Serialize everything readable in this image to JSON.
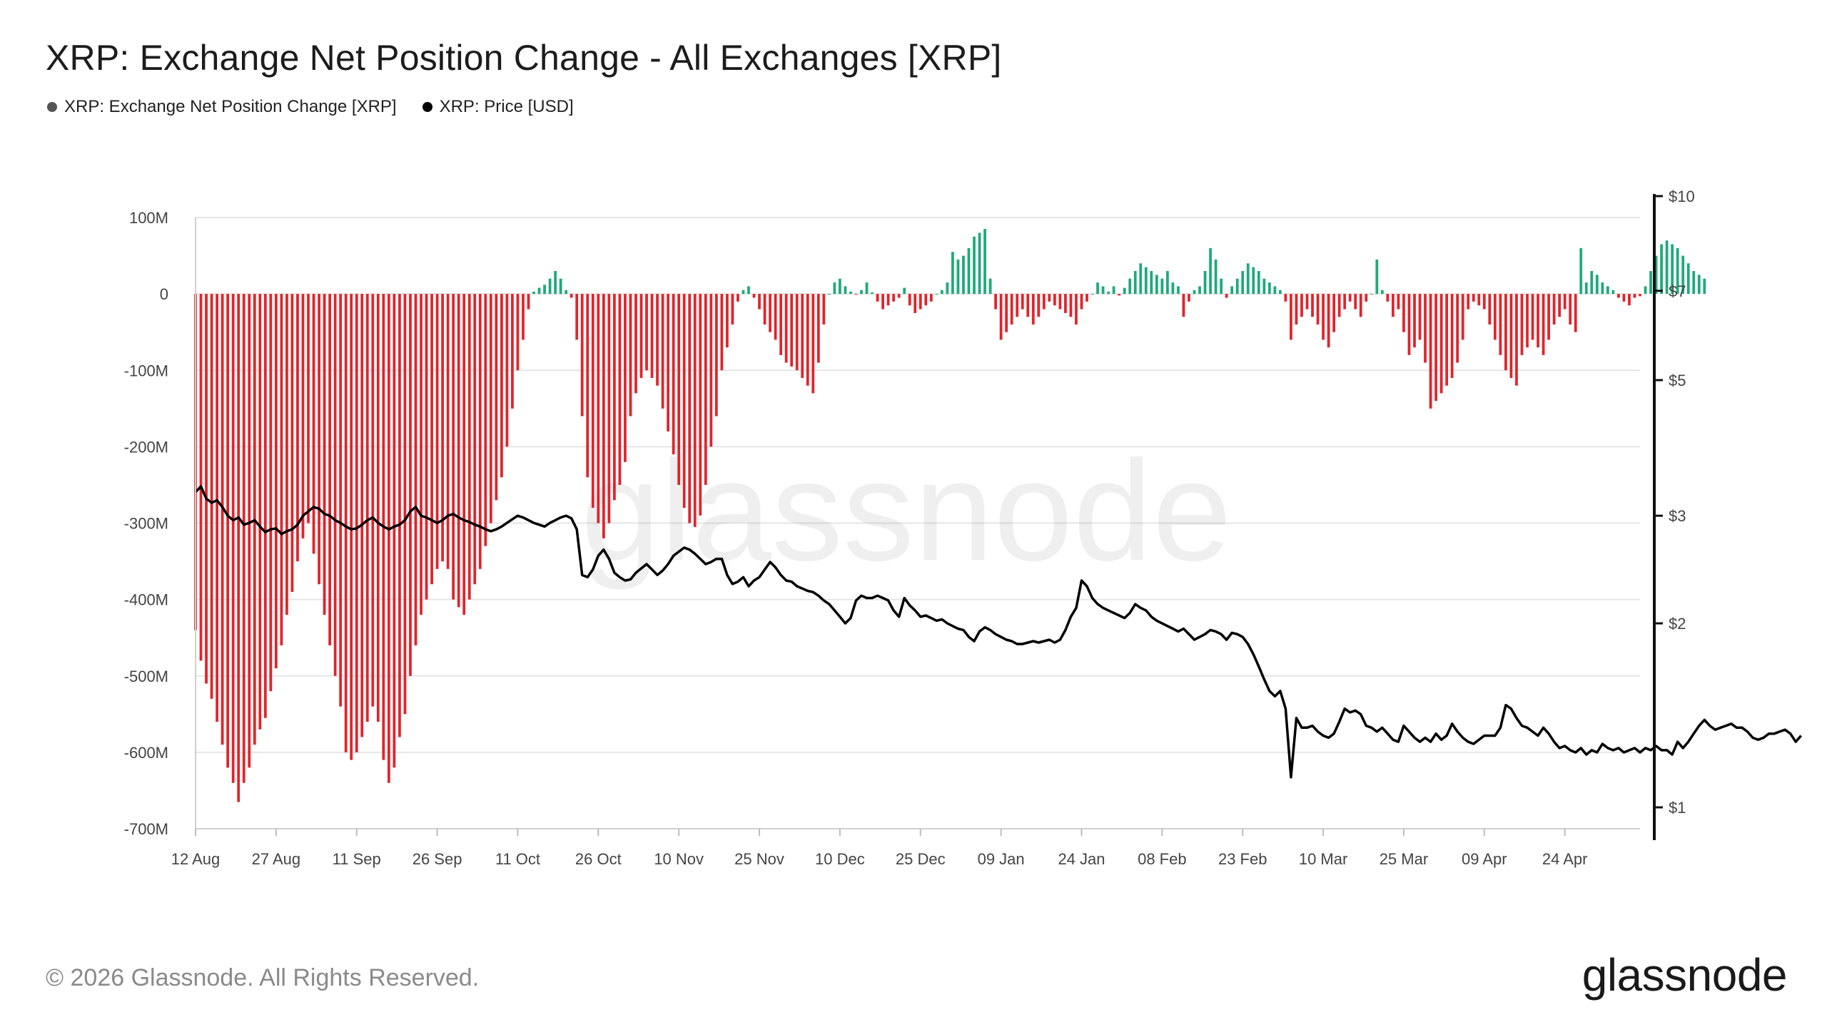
{
  "title": "XRP: Exchange Net Position Change - All Exchanges [XRP]",
  "legend": [
    {
      "label": "XRP: Exchange Net Position Change [XRP]",
      "color": "#555555"
    },
    {
      "label": "XRP: Price [USD]",
      "color": "#000000"
    }
  ],
  "footer": "© 2026 Glassnode. All Rights Reserved.",
  "brand": "glassnode",
  "watermark": "glassnode",
  "colors": {
    "positive": "#1fa97a",
    "negative": "#e0242b",
    "price": "#000000",
    "grid": "#e6e6e6"
  },
  "chart_data": {
    "type": "bar",
    "title": "XRP: Exchange Net Position Change - All Exchanges [XRP]",
    "grid": true,
    "legend_placement": "top-left",
    "x_axis": {
      "start": "2025-08-12",
      "end": "2026-05-08",
      "tick_labels": [
        "12 Aug",
        "27 Aug",
        "11 Sep",
        "26 Sep",
        "11 Oct",
        "26 Oct",
        "10 Nov",
        "25 Nov",
        "10 Dec",
        "25 Dec",
        "09 Jan",
        "24 Jan",
        "08 Feb",
        "23 Feb",
        "10 Mar",
        "25 Mar",
        "09 Apr",
        "24 Apr"
      ]
    },
    "y_left": {
      "label": "",
      "unit": "XRP",
      "range": [
        -700,
        100
      ],
      "tick_labels": [
        "100M",
        "0",
        "-100M",
        "-200M",
        "-300M",
        "-400M",
        "-500M",
        "-600M",
        "-700M"
      ]
    },
    "y_right": {
      "label": "",
      "scale": "log",
      "range": [
        1,
        10
      ],
      "tick_values": [
        10,
        7,
        5,
        3,
        2,
        1
      ],
      "tick_labels": [
        "$10",
        "$7",
        "$5",
        "$3",
        "$2",
        "$1"
      ]
    },
    "series": [
      {
        "name": "XRP: Exchange Net Position Change [XRP]",
        "unit": "M XRP",
        "step_days": 1,
        "values": [
          -440,
          -480,
          -510,
          -530,
          -560,
          -590,
          -620,
          -640,
          -665,
          -640,
          -620,
          -590,
          -570,
          -555,
          -520,
          -490,
          -460,
          -420,
          -390,
          -350,
          -320,
          -300,
          -340,
          -380,
          -420,
          -460,
          -500,
          -540,
          -600,
          -610,
          -600,
          -580,
          -560,
          -540,
          -560,
          -610,
          -640,
          -620,
          -580,
          -550,
          -500,
          -460,
          -420,
          -400,
          -380,
          -360,
          -350,
          -360,
          -400,
          -410,
          -420,
          -400,
          -380,
          -360,
          -330,
          -300,
          -270,
          -240,
          -200,
          -150,
          -100,
          -60,
          -20,
          3,
          8,
          12,
          20,
          30,
          20,
          5,
          -5,
          -60,
          -160,
          -240,
          -280,
          -300,
          -320,
          -300,
          -270,
          -250,
          -220,
          -160,
          -130,
          -110,
          -100,
          -110,
          -120,
          -150,
          -180,
          -210,
          -250,
          -280,
          -300,
          -305,
          -290,
          -250,
          -200,
          -160,
          -100,
          -70,
          -40,
          -10,
          5,
          10,
          -5,
          -20,
          -40,
          -50,
          -60,
          -80,
          -90,
          -95,
          -100,
          -110,
          -120,
          -130,
          -90,
          -40,
          0,
          15,
          20,
          10,
          3,
          -1,
          5,
          15,
          2,
          -10,
          -20,
          -15,
          -10,
          -5,
          8,
          -15,
          -25,
          -20,
          -15,
          -10,
          0,
          5,
          15,
          55,
          45,
          50,
          60,
          75,
          80,
          85,
          20,
          -20,
          -60,
          -50,
          -40,
          -30,
          -20,
          -30,
          -40,
          -30,
          -20,
          -10,
          -15,
          -20,
          -25,
          -30,
          -40,
          -20,
          -10,
          0,
          15,
          10,
          3,
          10,
          -2,
          8,
          20,
          30,
          40,
          35,
          30,
          25,
          20,
          30,
          15,
          10,
          -30,
          -10,
          5,
          10,
          30,
          60,
          45,
          20,
          -5,
          10,
          20,
          30,
          40,
          35,
          30,
          20,
          15,
          10,
          5,
          -10,
          -60,
          -40,
          -30,
          -20,
          -30,
          -40,
          -60,
          -70,
          -50,
          -30,
          -20,
          -10,
          -20,
          -30,
          -10,
          0,
          45,
          5,
          -10,
          -30,
          -20,
          -50,
          -80,
          -70,
          -60,
          -90,
          -150,
          -140,
          -130,
          -120,
          -110,
          -90,
          -60,
          -20,
          -10,
          -15,
          -20,
          -40,
          -60,
          -80,
          -100,
          -110,
          -120,
          -80,
          -70,
          -60,
          -70,
          -80,
          -60,
          -40,
          -30,
          -20,
          -40,
          -50,
          60,
          15,
          30,
          25,
          15,
          10,
          5,
          -5,
          -10,
          -15,
          -5,
          -3,
          10,
          30,
          50,
          65,
          70,
          65,
          60,
          50,
          40,
          30,
          25,
          20
        ],
        "color_positive": "#1fa97a",
        "color_negative": "#e0242b"
      },
      {
        "name": "XRP: Price [USD]",
        "unit": "USD",
        "step_days": 1,
        "axis": "right",
        "values": [
          3.28,
          3.35,
          3.2,
          3.15,
          3.18,
          3.1,
          3.0,
          2.95,
          2.98,
          2.9,
          2.92,
          2.95,
          2.88,
          2.82,
          2.85,
          2.86,
          2.8,
          2.83,
          2.85,
          2.9,
          3.0,
          3.05,
          3.1,
          3.08,
          3.02,
          3.0,
          2.95,
          2.92,
          2.88,
          2.85,
          2.86,
          2.9,
          2.95,
          2.98,
          2.92,
          2.88,
          2.85,
          2.88,
          2.9,
          2.95,
          3.05,
          3.1,
          3.0,
          2.98,
          2.95,
          2.92,
          2.95,
          3.0,
          3.02,
          2.98,
          2.95,
          2.93,
          2.9,
          2.88,
          2.85,
          2.83,
          2.85,
          2.88,
          2.92,
          2.96,
          3.0,
          2.98,
          2.95,
          2.92,
          2.9,
          2.88,
          2.92,
          2.95,
          2.98,
          3.0,
          2.97,
          2.85,
          2.4,
          2.38,
          2.45,
          2.58,
          2.64,
          2.55,
          2.42,
          2.38,
          2.35,
          2.36,
          2.42,
          2.46,
          2.5,
          2.45,
          2.4,
          2.44,
          2.5,
          2.58,
          2.62,
          2.66,
          2.64,
          2.6,
          2.55,
          2.5,
          2.52,
          2.55,
          2.55,
          2.4,
          2.32,
          2.34,
          2.38,
          2.3,
          2.35,
          2.38,
          2.45,
          2.52,
          2.47,
          2.4,
          2.35,
          2.34,
          2.3,
          2.28,
          2.26,
          2.25,
          2.22,
          2.18,
          2.15,
          2.1,
          2.05,
          2.0,
          2.04,
          2.18,
          2.22,
          2.2,
          2.2,
          2.22,
          2.2,
          2.18,
          2.1,
          2.05,
          2.2,
          2.14,
          2.1,
          2.05,
          2.06,
          2.04,
          2.02,
          2.03,
          2.0,
          1.98,
          1.96,
          1.95,
          1.9,
          1.87,
          1.94,
          1.97,
          1.95,
          1.92,
          1.9,
          1.88,
          1.87,
          1.85,
          1.85,
          1.86,
          1.87,
          1.86,
          1.87,
          1.88,
          1.86,
          1.88,
          1.95,
          2.05,
          2.12,
          2.35,
          2.3,
          2.2,
          2.15,
          2.12,
          2.1,
          2.08,
          2.06,
          2.04,
          2.08,
          2.15,
          2.12,
          2.1,
          2.05,
          2.02,
          2.0,
          1.98,
          1.96,
          1.94,
          1.96,
          1.92,
          1.88,
          1.9,
          1.92,
          1.95,
          1.94,
          1.92,
          1.88,
          1.93,
          1.92,
          1.9,
          1.85,
          1.78,
          1.7,
          1.62,
          1.55,
          1.52,
          1.55,
          1.45,
          1.12,
          1.4,
          1.35,
          1.35,
          1.36,
          1.33,
          1.31,
          1.3,
          1.32,
          1.38,
          1.45,
          1.43,
          1.44,
          1.42,
          1.36,
          1.35,
          1.33,
          1.35,
          1.32,
          1.29,
          1.28,
          1.36,
          1.33,
          1.3,
          1.28,
          1.3,
          1.28,
          1.32,
          1.29,
          1.31,
          1.37,
          1.33,
          1.3,
          1.28,
          1.27,
          1.29,
          1.31,
          1.31,
          1.31,
          1.35,
          1.47,
          1.45,
          1.4,
          1.36,
          1.35,
          1.33,
          1.31,
          1.35,
          1.32,
          1.28,
          1.25,
          1.26,
          1.24,
          1.23,
          1.25,
          1.22,
          1.24,
          1.23,
          1.27,
          1.25,
          1.24,
          1.25,
          1.23,
          1.24,
          1.25,
          1.23,
          1.25,
          1.24,
          1.26,
          1.24,
          1.24,
          1.22,
          1.28,
          1.25,
          1.28,
          1.32,
          1.36,
          1.39,
          1.36,
          1.34,
          1.35,
          1.36,
          1.37,
          1.35,
          1.35,
          1.33,
          1.3,
          1.29,
          1.3,
          1.32,
          1.32,
          1.33,
          1.34,
          1.32,
          1.28,
          1.31
        ]
      }
    ]
  }
}
